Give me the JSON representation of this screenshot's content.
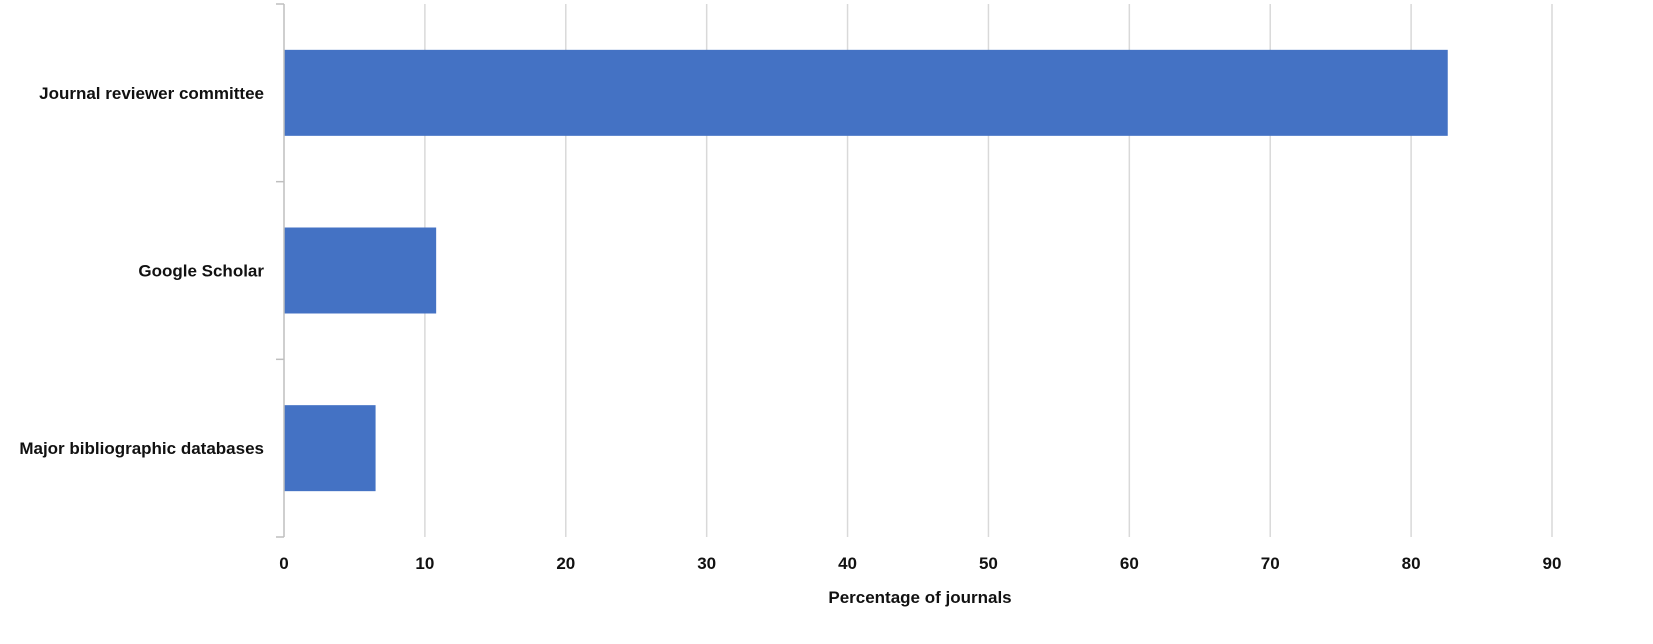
{
  "chart_data": {
    "type": "bar",
    "orientation": "horizontal",
    "categories": [
      "Journal reviewer committee",
      "Google Scholar",
      "Major bibliographic databases"
    ],
    "values": [
      82.6,
      10.8,
      6.5
    ],
    "title": "",
    "xlabel": "Percentage of journals",
    "ylabel": "",
    "xlim": [
      0,
      90
    ],
    "xticks": [
      "0",
      "10",
      "20",
      "30",
      "40",
      "50",
      "60",
      "70",
      "80",
      "90"
    ],
    "grid": "vertical",
    "legend": "none",
    "bar_color": "#4472C4",
    "grid_color": "#d9d9d9",
    "axis_color": "#bfbfbf"
  }
}
